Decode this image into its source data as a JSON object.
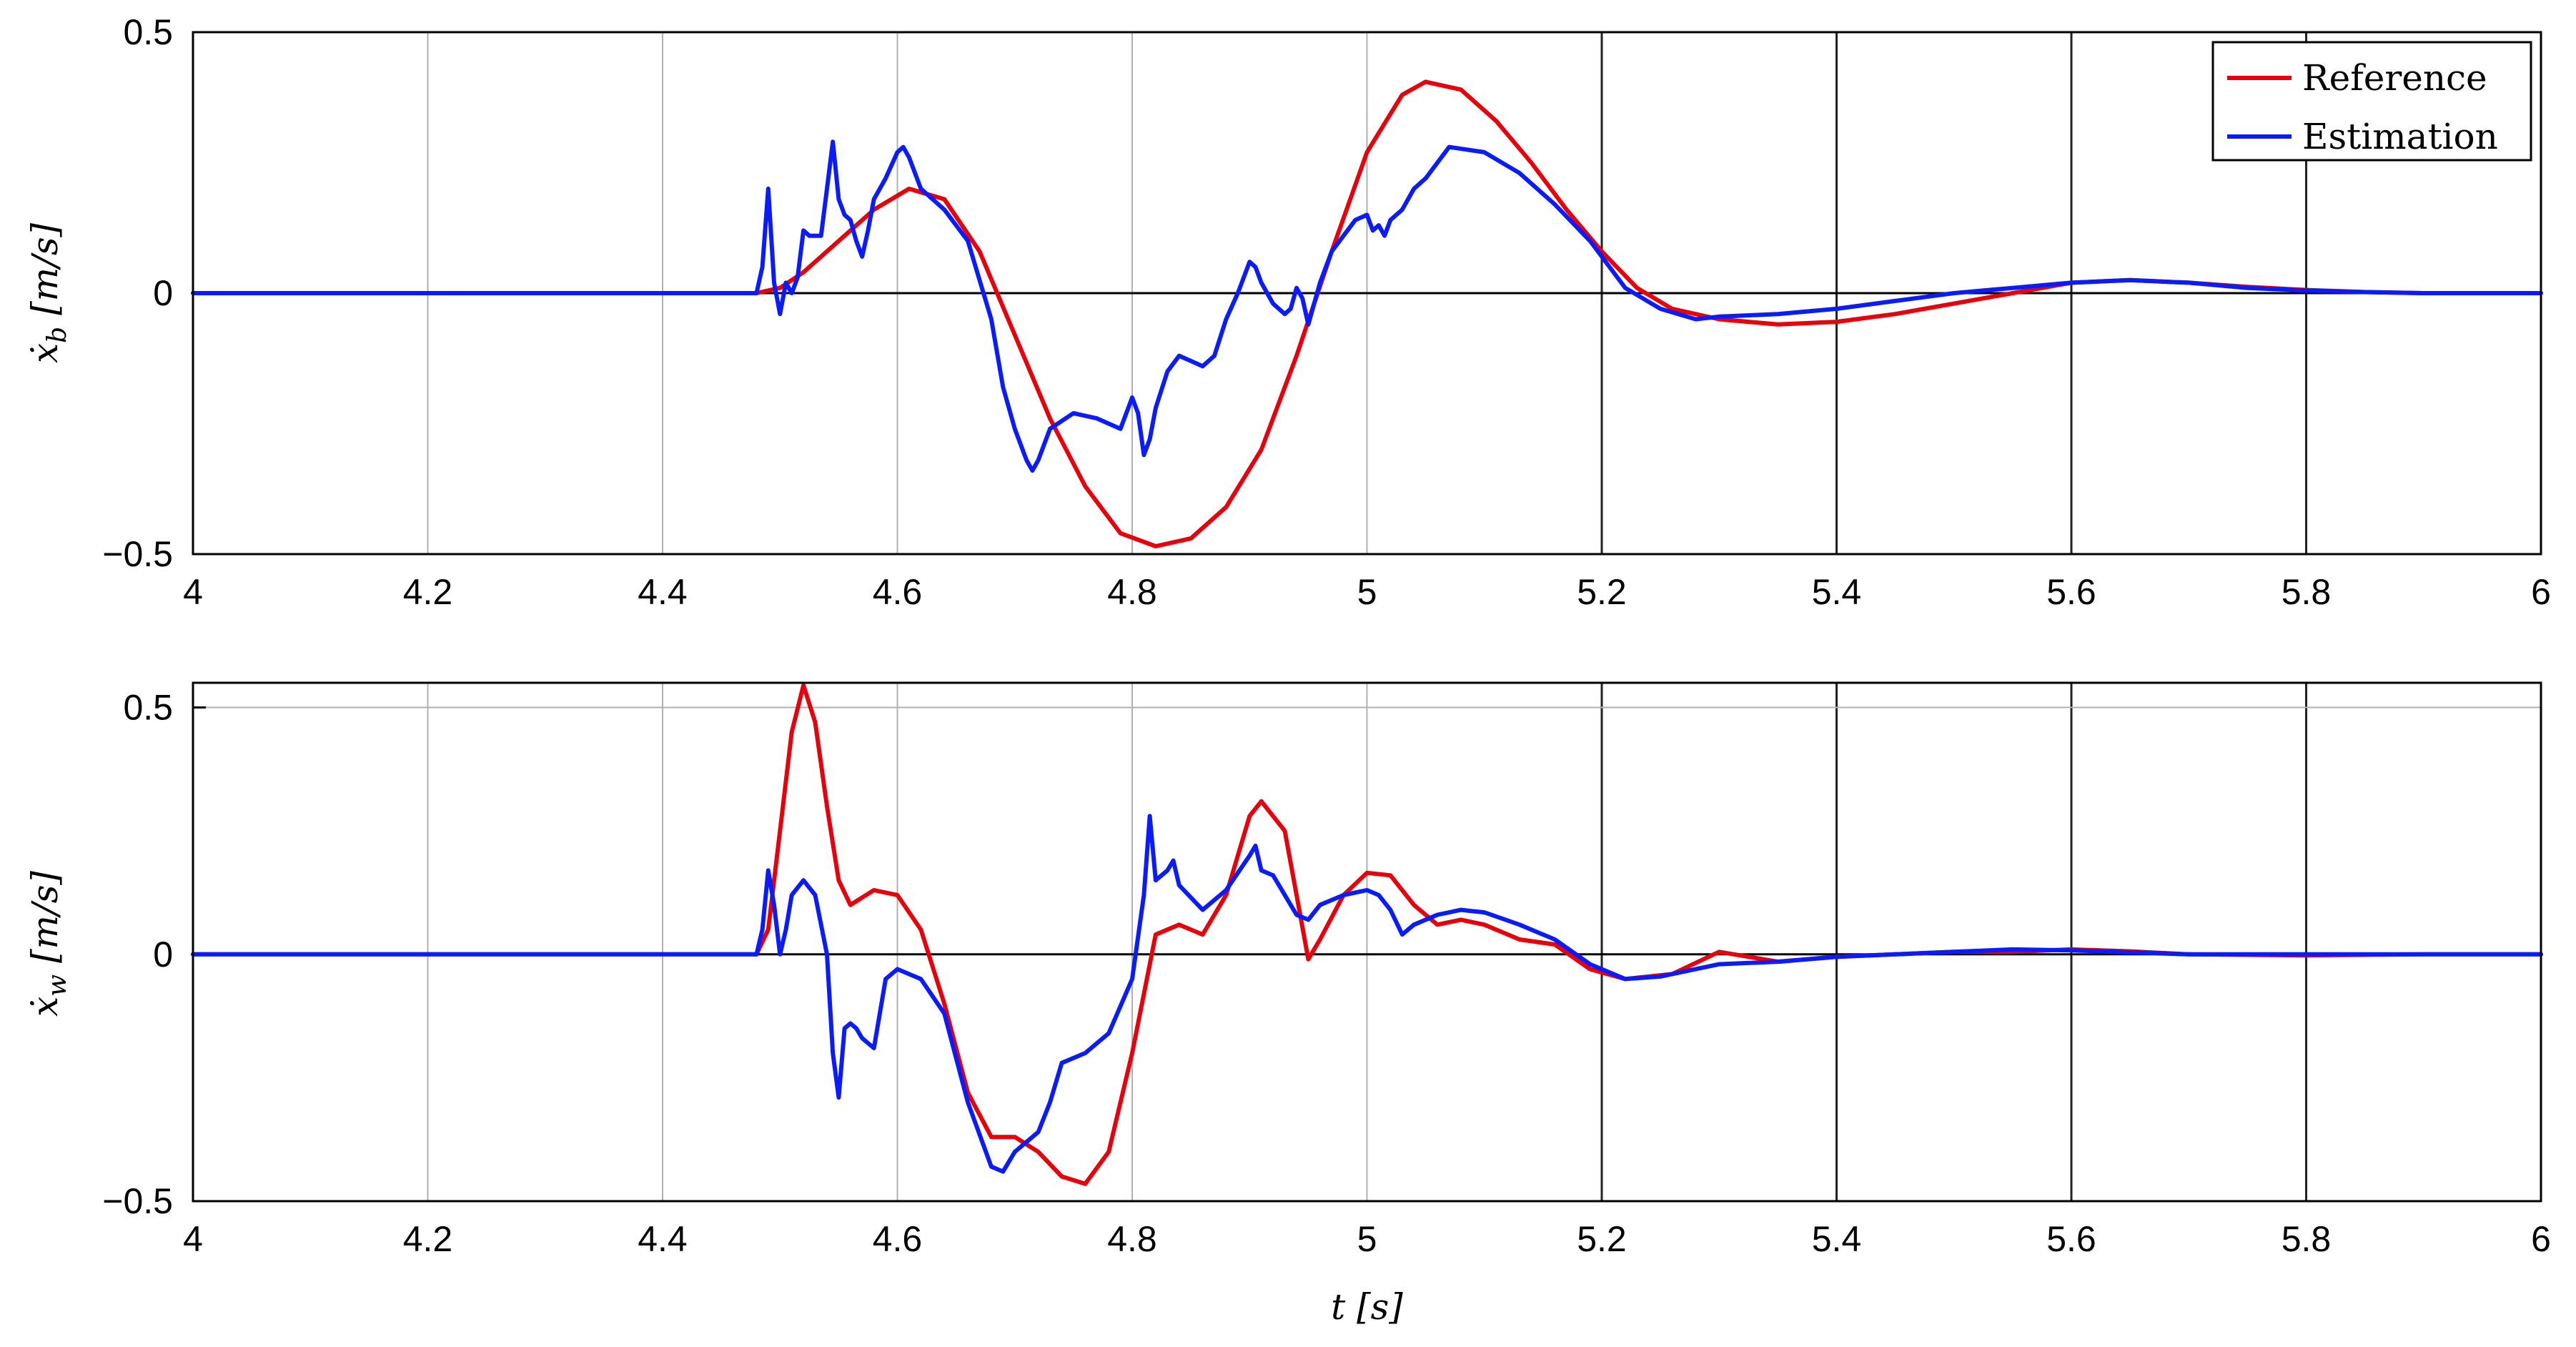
{
  "chart_data": [
    {
      "type": "line",
      "ylabel": "ẋ_b [m/s]",
      "xlabel": "",
      "xlim": [
        4,
        6
      ],
      "ylim": [
        -0.5,
        0.5
      ],
      "xticks": [
        "4",
        "4.2",
        "4.4",
        "4.6",
        "4.8",
        "5",
        "5.2",
        "5.4",
        "5.6",
        "5.8",
        "6"
      ],
      "yticks": [
        "0.5",
        "0",
        "−0.5"
      ],
      "grid": "vertical",
      "legend": {
        "placement": "top-right",
        "entries": [
          "Reference",
          "Estimation"
        ]
      },
      "series": [
        {
          "name": "Reference",
          "color": "#e8000b",
          "points": [
            [
              4.0,
              0
            ],
            [
              4.48,
              0
            ],
            [
              4.5,
              0.01
            ],
            [
              4.52,
              0.04
            ],
            [
              4.55,
              0.1
            ],
            [
              4.58,
              0.16
            ],
            [
              4.61,
              0.2
            ],
            [
              4.64,
              0.18
            ],
            [
              4.67,
              0.08
            ],
            [
              4.7,
              -0.08
            ],
            [
              4.73,
              -0.24
            ],
            [
              4.76,
              -0.37
            ],
            [
              4.79,
              -0.46
            ],
            [
              4.82,
              -0.485
            ],
            [
              4.85,
              -0.47
            ],
            [
              4.88,
              -0.41
            ],
            [
              4.91,
              -0.3
            ],
            [
              4.94,
              -0.12
            ],
            [
              4.97,
              0.08
            ],
            [
              5.0,
              0.27
            ],
            [
              5.03,
              0.38
            ],
            [
              5.05,
              0.405
            ],
            [
              5.08,
              0.39
            ],
            [
              5.11,
              0.33
            ],
            [
              5.14,
              0.25
            ],
            [
              5.17,
              0.16
            ],
            [
              5.2,
              0.08
            ],
            [
              5.23,
              0.01
            ],
            [
              5.26,
              -0.03
            ],
            [
              5.3,
              -0.05
            ],
            [
              5.35,
              -0.06
            ],
            [
              5.4,
              -0.055
            ],
            [
              5.45,
              -0.04
            ],
            [
              5.5,
              -0.02
            ],
            [
              5.55,
              0.0
            ],
            [
              5.6,
              0.02
            ],
            [
              5.65,
              0.025
            ],
            [
              5.7,
              0.02
            ],
            [
              5.75,
              0.012
            ],
            [
              5.8,
              0.006
            ],
            [
              5.85,
              0.002
            ],
            [
              5.9,
              0.0
            ],
            [
              6.0,
              0
            ]
          ]
        },
        {
          "name": "Estimation",
          "color": "#0a1bff",
          "points": [
            [
              4.0,
              0
            ],
            [
              4.48,
              0
            ],
            [
              4.485,
              0.05
            ],
            [
              4.49,
              0.2
            ],
            [
              4.495,
              0.02
            ],
            [
              4.5,
              -0.04
            ],
            [
              4.505,
              0.02
            ],
            [
              4.51,
              0.0
            ],
            [
              4.515,
              0.03
            ],
            [
              4.52,
              0.12
            ],
            [
              4.525,
              0.11
            ],
            [
              4.53,
              0.11
            ],
            [
              4.535,
              0.11
            ],
            [
              4.54,
              0.2
            ],
            [
              4.545,
              0.29
            ],
            [
              4.55,
              0.18
            ],
            [
              4.555,
              0.15
            ],
            [
              4.56,
              0.14
            ],
            [
              4.565,
              0.1
            ],
            [
              4.57,
              0.07
            ],
            [
              4.575,
              0.12
            ],
            [
              4.58,
              0.18
            ],
            [
              4.59,
              0.22
            ],
            [
              4.6,
              0.27
            ],
            [
              4.605,
              0.28
            ],
            [
              4.61,
              0.26
            ],
            [
              4.62,
              0.2
            ],
            [
              4.64,
              0.16
            ],
            [
              4.66,
              0.1
            ],
            [
              4.68,
              -0.05
            ],
            [
              4.69,
              -0.18
            ],
            [
              4.7,
              -0.26
            ],
            [
              4.71,
              -0.32
            ],
            [
              4.715,
              -0.34
            ],
            [
              4.72,
              -0.32
            ],
            [
              4.73,
              -0.26
            ],
            [
              4.75,
              -0.23
            ],
            [
              4.77,
              -0.24
            ],
            [
              4.79,
              -0.26
            ],
            [
              4.8,
              -0.2
            ],
            [
              4.805,
              -0.23
            ],
            [
              4.81,
              -0.31
            ],
            [
              4.815,
              -0.28
            ],
            [
              4.82,
              -0.22
            ],
            [
              4.83,
              -0.15
            ],
            [
              4.84,
              -0.12
            ],
            [
              4.86,
              -0.14
            ],
            [
              4.87,
              -0.12
            ],
            [
              4.88,
              -0.05
            ],
            [
              4.89,
              0.0
            ],
            [
              4.9,
              0.06
            ],
            [
              4.905,
              0.05
            ],
            [
              4.91,
              0.02
            ],
            [
              4.92,
              -0.02
            ],
            [
              4.93,
              -0.04
            ],
            [
              4.935,
              -0.03
            ],
            [
              4.94,
              0.01
            ],
            [
              4.945,
              -0.01
            ],
            [
              4.95,
              -0.06
            ],
            [
              4.96,
              0.02
            ],
            [
              4.97,
              0.08
            ],
            [
              4.98,
              0.11
            ],
            [
              4.99,
              0.14
            ],
            [
              5.0,
              0.15
            ],
            [
              5.005,
              0.12
            ],
            [
              5.01,
              0.13
            ],
            [
              5.015,
              0.11
            ],
            [
              5.02,
              0.14
            ],
            [
              5.03,
              0.16
            ],
            [
              5.04,
              0.2
            ],
            [
              5.05,
              0.22
            ],
            [
              5.07,
              0.28
            ],
            [
              5.1,
              0.27
            ],
            [
              5.13,
              0.23
            ],
            [
              5.16,
              0.17
            ],
            [
              5.19,
              0.1
            ],
            [
              5.22,
              0.01
            ],
            [
              5.25,
              -0.03
            ],
            [
              5.28,
              -0.05
            ],
            [
              5.3,
              -0.045
            ],
            [
              5.35,
              -0.04
            ],
            [
              5.4,
              -0.03
            ],
            [
              5.45,
              -0.015
            ],
            [
              5.5,
              0.0
            ],
            [
              5.55,
              0.01
            ],
            [
              5.6,
              0.02
            ],
            [
              5.65,
              0.025
            ],
            [
              5.7,
              0.02
            ],
            [
              5.75,
              0.01
            ],
            [
              5.8,
              0.005
            ],
            [
              5.85,
              0.002
            ],
            [
              5.9,
              0.0
            ],
            [
              6.0,
              0
            ]
          ]
        }
      ]
    },
    {
      "type": "line",
      "ylabel": "ẋ_w [m/s]",
      "xlabel": "t [s]",
      "xlim": [
        4,
        6
      ],
      "ylim": [
        -0.5,
        0.55
      ],
      "xticks": [
        "4",
        "4.2",
        "4.4",
        "4.6",
        "4.8",
        "5",
        "5.2",
        "5.4",
        "5.6",
        "5.8",
        "6"
      ],
      "yticks": [
        "0.5",
        "0",
        "−0.5"
      ],
      "grid": "vertical",
      "series": [
        {
          "name": "Reference",
          "color": "#e8000b",
          "points": [
            [
              4.0,
              0
            ],
            [
              4.48,
              0
            ],
            [
              4.49,
              0.05
            ],
            [
              4.5,
              0.25
            ],
            [
              4.51,
              0.45
            ],
            [
              4.52,
              0.545
            ],
            [
              4.53,
              0.47
            ],
            [
              4.54,
              0.3
            ],
            [
              4.55,
              0.15
            ],
            [
              4.56,
              0.1
            ],
            [
              4.58,
              0.13
            ],
            [
              4.6,
              0.12
            ],
            [
              4.62,
              0.05
            ],
            [
              4.64,
              -0.1
            ],
            [
              4.66,
              -0.28
            ],
            [
              4.68,
              -0.37
            ],
            [
              4.7,
              -0.37
            ],
            [
              4.72,
              -0.4
            ],
            [
              4.74,
              -0.45
            ],
            [
              4.76,
              -0.465
            ],
            [
              4.78,
              -0.4
            ],
            [
              4.8,
              -0.2
            ],
            [
              4.82,
              0.04
            ],
            [
              4.84,
              0.06
            ],
            [
              4.86,
              0.04
            ],
            [
              4.88,
              0.12
            ],
            [
              4.9,
              0.28
            ],
            [
              4.91,
              0.31
            ],
            [
              4.93,
              0.25
            ],
            [
              4.94,
              0.12
            ],
            [
              4.95,
              -0.01
            ],
            [
              4.96,
              0.03
            ],
            [
              4.98,
              0.12
            ],
            [
              5.0,
              0.165
            ],
            [
              5.02,
              0.16
            ],
            [
              5.04,
              0.1
            ],
            [
              5.06,
              0.06
            ],
            [
              5.08,
              0.07
            ],
            [
              5.1,
              0.06
            ],
            [
              5.13,
              0.03
            ],
            [
              5.16,
              0.02
            ],
            [
              5.19,
              -0.03
            ],
            [
              5.22,
              -0.05
            ],
            [
              5.26,
              -0.04
            ],
            [
              5.3,
              0.005
            ],
            [
              5.35,
              -0.015
            ],
            [
              5.4,
              -0.005
            ],
            [
              5.45,
              0.0
            ],
            [
              5.5,
              0.005
            ],
            [
              5.55,
              0.005
            ],
            [
              5.6,
              0.01
            ],
            [
              5.65,
              0.006
            ],
            [
              5.7,
              0.0
            ],
            [
              5.8,
              -0.002
            ],
            [
              5.9,
              0.0
            ],
            [
              6.0,
              0
            ]
          ]
        },
        {
          "name": "Estimation",
          "color": "#0a1bff",
          "points": [
            [
              4.0,
              0
            ],
            [
              4.48,
              0
            ],
            [
              4.485,
              0.05
            ],
            [
              4.49,
              0.17
            ],
            [
              4.495,
              0.1
            ],
            [
              4.5,
              0.0
            ],
            [
              4.505,
              0.05
            ],
            [
              4.51,
              0.12
            ],
            [
              4.52,
              0.15
            ],
            [
              4.53,
              0.12
            ],
            [
              4.54,
              0.0
            ],
            [
              4.545,
              -0.2
            ],
            [
              4.55,
              -0.29
            ],
            [
              4.555,
              -0.15
            ],
            [
              4.56,
              -0.14
            ],
            [
              4.565,
              -0.15
            ],
            [
              4.57,
              -0.17
            ],
            [
              4.58,
              -0.19
            ],
            [
              4.59,
              -0.05
            ],
            [
              4.6,
              -0.03
            ],
            [
              4.62,
              -0.05
            ],
            [
              4.64,
              -0.12
            ],
            [
              4.66,
              -0.3
            ],
            [
              4.68,
              -0.43
            ],
            [
              4.69,
              -0.44
            ],
            [
              4.7,
              -0.4
            ],
            [
              4.72,
              -0.36
            ],
            [
              4.73,
              -0.3
            ],
            [
              4.74,
              -0.22
            ],
            [
              4.76,
              -0.2
            ],
            [
              4.78,
              -0.16
            ],
            [
              4.8,
              -0.05
            ],
            [
              4.81,
              0.12
            ],
            [
              4.815,
              0.28
            ],
            [
              4.82,
              0.15
            ],
            [
              4.83,
              0.17
            ],
            [
              4.835,
              0.19
            ],
            [
              4.84,
              0.14
            ],
            [
              4.86,
              0.09
            ],
            [
              4.88,
              0.13
            ],
            [
              4.9,
              0.2
            ],
            [
              4.905,
              0.22
            ],
            [
              4.91,
              0.17
            ],
            [
              4.92,
              0.16
            ],
            [
              4.94,
              0.08
            ],
            [
              4.95,
              0.07
            ],
            [
              4.96,
              0.1
            ],
            [
              4.98,
              0.12
            ],
            [
              5.0,
              0.13
            ],
            [
              5.01,
              0.12
            ],
            [
              5.02,
              0.09
            ],
            [
              5.03,
              0.04
            ],
            [
              5.04,
              0.06
            ],
            [
              5.06,
              0.08
            ],
            [
              5.08,
              0.09
            ],
            [
              5.1,
              0.085
            ],
            [
              5.13,
              0.06
            ],
            [
              5.16,
              0.03
            ],
            [
              5.19,
              -0.02
            ],
            [
              5.22,
              -0.05
            ],
            [
              5.25,
              -0.045
            ],
            [
              5.3,
              -0.02
            ],
            [
              5.35,
              -0.015
            ],
            [
              5.4,
              -0.005
            ],
            [
              5.45,
              0.0
            ],
            [
              5.5,
              0.005
            ],
            [
              5.55,
              0.01
            ],
            [
              5.6,
              0.008
            ],
            [
              5.65,
              0.004
            ],
            [
              5.7,
              0.0
            ],
            [
              5.8,
              0.0
            ],
            [
              5.9,
              0.0
            ],
            [
              6.0,
              0
            ]
          ]
        }
      ]
    }
  ]
}
